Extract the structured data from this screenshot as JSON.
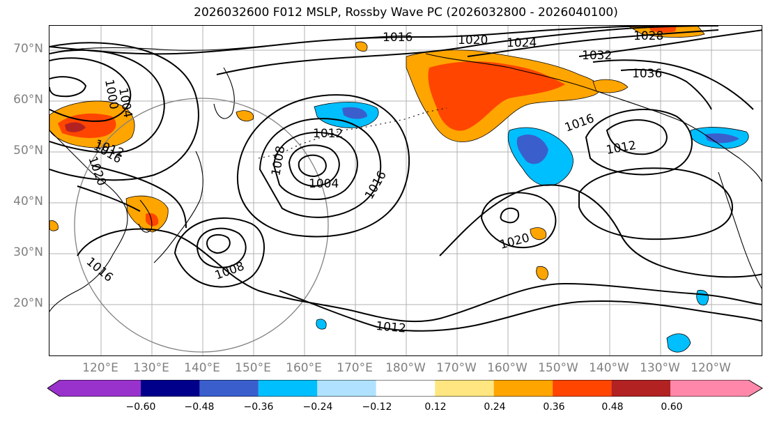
{
  "title": "2026032600 F012 MSLP, Rossby Wave PC (2026032800 - 2026040100)",
  "lat_labels": [
    "70°N",
    "60°N",
    "50°N",
    "40°N",
    "30°N",
    "20°N"
  ],
  "lon_labels": [
    "120°E",
    "130°E",
    "140°E",
    "150°E",
    "160°E",
    "170°E",
    "180°W",
    "170°W",
    "160°W",
    "150°W",
    "140°W",
    "130°W",
    "120°W"
  ],
  "isobar_labels": [
    "1016",
    "1020",
    "1024",
    "1028",
    "1032",
    "1036",
    "1000",
    "1004",
    "1012",
    "1016",
    "1020",
    "1008",
    "1012",
    "1004",
    "1016",
    "1016",
    "1012",
    "1020",
    "1008",
    "1016",
    "1012"
  ],
  "colorbar": {
    "ticks": [
      "−0.60",
      "−0.48",
      "−0.36",
      "−0.24",
      "−0.12",
      "0.12",
      "0.24",
      "0.36",
      "0.48",
      "0.60"
    ],
    "colors": [
      "#9932cc",
      "#00008b",
      "#3a5fcd",
      "#00bfff",
      "#b0e2ff",
      "#ffffff",
      "#ffe680",
      "#ffa500",
      "#ff4500",
      "#b22222",
      "#ff88aa"
    ]
  },
  "colors": {
    "coast": "#000000",
    "isobar": "#000000",
    "grid": "#b0b0b0",
    "circle": "#808080",
    "tick_label": "#808080"
  }
}
